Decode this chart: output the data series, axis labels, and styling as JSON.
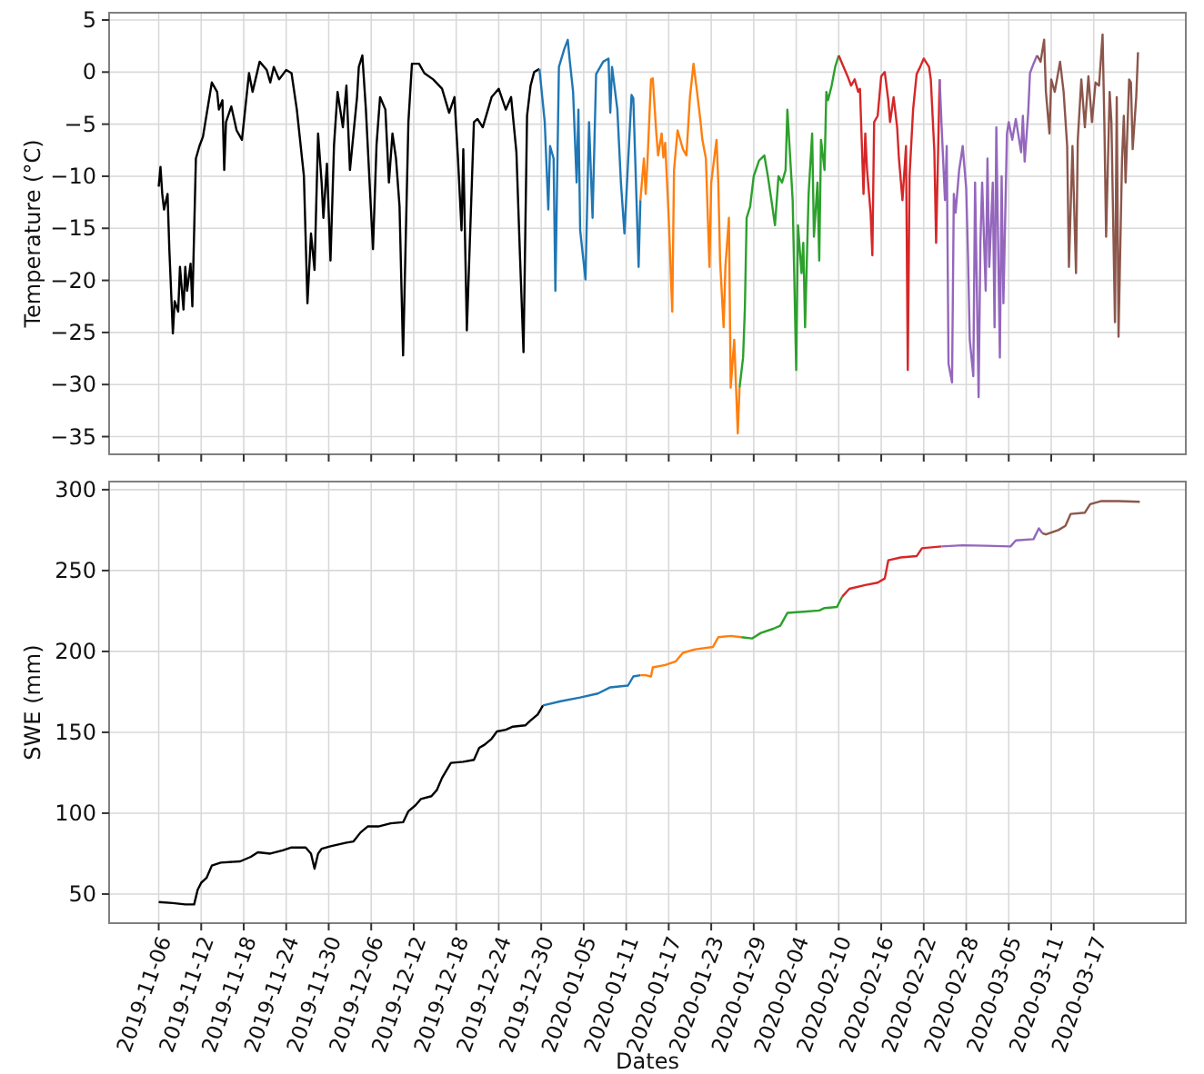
{
  "chart_data": [
    {
      "type": "line",
      "ylabel": "Temperature (°C)",
      "xlim": [
        "2019-10-30",
        "2020-03-30"
      ],
      "ylim": [
        -36.7,
        5.7
      ],
      "yticks": [
        -35,
        -30,
        -25,
        -20,
        -15,
        -10,
        -5,
        0,
        5
      ],
      "xticks": [
        "2019-11-06",
        "2019-11-12",
        "2019-11-18",
        "2019-11-24",
        "2019-11-30",
        "2019-12-06",
        "2019-12-12",
        "2019-12-18",
        "2019-12-24",
        "2019-12-30",
        "2020-01-05",
        "2020-01-11",
        "2020-01-17",
        "2020-01-23",
        "2020-01-29",
        "2020-02-04",
        "2020-02-10",
        "2020-02-16",
        "2020-02-22",
        "2020-02-28",
        "2020-03-05",
        "2020-03-11",
        "2020-03-17"
      ],
      "tick_labels": "y",
      "grid": true,
      "series": [
        {
          "color": "#000000",
          "x": [
            "2019-11-06T00:00",
            "2019-11-06T06:00",
            "2019-11-06T12:00",
            "2019-11-06T18:00",
            "2019-11-07T06:00",
            "2019-11-07T12:00",
            "2019-11-08T00:00",
            "2019-11-08T06:00",
            "2019-11-08T18:00",
            "2019-11-09T00:00",
            "2019-11-09T12:00",
            "2019-11-09T18:00",
            "2019-11-10T00:00",
            "2019-11-10T12:00",
            "2019-11-10T18:00",
            "2019-11-11T06:00",
            "2019-11-11T18:00",
            "2019-11-12T06:00",
            "2019-11-13T12:00",
            "2019-11-14T06:00",
            "2019-11-14T12:00",
            "2019-11-15T00:00",
            "2019-11-15T06:00",
            "2019-11-15T12:00",
            "2019-11-16T06:00",
            "2019-11-17T00:00",
            "2019-11-17T18:00",
            "2019-11-18T18:00",
            "2019-11-19T06:00",
            "2019-11-20T06:00",
            "2019-11-21T06:00",
            "2019-11-21T18:00",
            "2019-11-22T06:00",
            "2019-11-23T00:00",
            "2019-11-24T00:00",
            "2019-11-24T18:00",
            "2019-11-25T12:00",
            "2019-11-26T12:00",
            "2019-11-27T00:00",
            "2019-11-27T12:00",
            "2019-11-28T00:00",
            "2019-11-28T12:00",
            "2019-11-29T00:00",
            "2019-11-29T06:00",
            "2019-11-29T18:00",
            "2019-11-30T06:00",
            "2019-11-30T18:00",
            "2019-12-01T06:00",
            "2019-12-02T00:00",
            "2019-12-02T12:00",
            "2019-12-03T00:00",
            "2019-12-03T12:00",
            "2019-12-04T00:00",
            "2019-12-04T06:00",
            "2019-12-04T18:00",
            "2019-12-05T06:00",
            "2019-12-06T06:00",
            "2019-12-06T18:00",
            "2019-12-07T06:00",
            "2019-12-08T00:00",
            "2019-12-08T12:00",
            "2019-12-09T00:00",
            "2019-12-09T12:00",
            "2019-12-10T00:00",
            "2019-12-10T12:00",
            "2019-12-11T06:00",
            "2019-12-11T18:00",
            "2019-12-12T18:00",
            "2019-12-13T12:00",
            "2019-12-14T18:00",
            "2019-12-16T00:00",
            "2019-12-17T00:00",
            "2019-12-17T18:00",
            "2019-12-18T06:00",
            "2019-12-18T18:00",
            "2019-12-19T00:00",
            "2019-12-19T12:00",
            "2019-12-20T12:00",
            "2019-12-21T00:00",
            "2019-12-21T18:00",
            "2019-12-23T00:00",
            "2019-12-24T00:00",
            "2019-12-25T00:00",
            "2019-12-25T18:00",
            "2019-12-26T12:00",
            "2019-12-27T00:00",
            "2019-12-27T12:00",
            "2019-12-28T00:00",
            "2019-12-28T12:00",
            "2019-12-29T00:00",
            "2019-12-29T18:00"
          ],
          "values": [
            -11,
            -9.1,
            -11.7,
            -13.2,
            -11.7,
            -17,
            -25.1,
            -22,
            -23,
            -18.7,
            -22.8,
            -18.7,
            -21,
            -18.4,
            -22.5,
            -8.3,
            -7.1,
            -6.2,
            -1,
            -1.9,
            -3.6,
            -2.7,
            -9.4,
            -4.8,
            -3.3,
            -5.6,
            -6.5,
            -0.1,
            -1.9,
            1,
            0.2,
            -1,
            0.5,
            -0.7,
            0.2,
            -0.1,
            -3.6,
            -10,
            -22.2,
            -15.5,
            -19,
            -5.9,
            -10.6,
            -14,
            -8.8,
            -18.1,
            -7,
            -1.9,
            -5.3,
            -1.3,
            -9.4,
            -5.9,
            -2.4,
            0.5,
            1.6,
            -3.6,
            -17,
            -7,
            -2.4,
            -3.6,
            -10.6,
            -5.9,
            -8.3,
            -12.9,
            -27.2,
            -4.8,
            0.8,
            0.8,
            -0.1,
            -0.7,
            -1.6,
            -3.9,
            -2.4,
            -8.3,
            -15.2,
            -7.4,
            -24.8,
            -4.8,
            -4.5,
            -5.3,
            -2.4,
            -1.6,
            -3.6,
            -2.4,
            -7.7,
            -17.6,
            -26.9,
            -4.2,
            -1.3,
            0,
            0.3
          ]
        },
        {
          "color": "#1f77b4",
          "x": [
            "2019-12-29T18:00",
            "2019-12-30T12:00",
            "2019-12-31T00:00",
            "2019-12-31T06:00",
            "2019-12-31T18:00",
            "2020-01-01T00:00",
            "2020-01-01T12:00",
            "2020-01-02T06:00",
            "2020-01-02T18:00",
            "2020-01-03T00:00",
            "2020-01-03T12:00",
            "2020-01-04T00:00",
            "2020-01-04T06:00",
            "2020-01-04T12:00",
            "2020-01-05T06:00",
            "2020-01-05T18:00",
            "2020-01-06T06:00",
            "2020-01-06T18:00",
            "2020-01-07T18:00",
            "2020-01-08T12:00",
            "2020-01-08T18:00",
            "2020-01-09T00:00",
            "2020-01-09T18:00",
            "2020-01-10T06:00",
            "2020-01-10T18:00",
            "2020-01-11T18:00",
            "2020-01-12T00:00",
            "2020-01-12T18:00",
            "2020-01-13T00:00"
          ],
          "values": [
            0.3,
            -4.8,
            -13.2,
            -7.1,
            -8.3,
            -21,
            0.5,
            2.2,
            3.1,
            1.3,
            -1.9,
            -10.6,
            -3.6,
            -15.2,
            -19.9,
            -4.8,
            -14,
            -0.2,
            1,
            1.3,
            -3.9,
            0.5,
            -3.6,
            -10.6,
            -15.5,
            -2.2,
            -2.5,
            -18.7,
            -12.3
          ]
        },
        {
          "color": "#ff7f0e",
          "x": [
            "2020-01-13T00:00",
            "2020-01-13T12:00",
            "2020-01-13T18:00",
            "2020-01-14T00:00",
            "2020-01-14T12:00",
            "2020-01-14T18:00",
            "2020-01-15T06:00",
            "2020-01-15T12:00",
            "2020-01-16T00:00",
            "2020-01-16T06:00",
            "2020-01-16T12:00",
            "2020-01-17T00:00",
            "2020-01-17T12:00",
            "2020-01-17T18:00",
            "2020-01-18T06:00",
            "2020-01-19T00:00",
            "2020-01-19T12:00",
            "2020-01-20T00:00",
            "2020-01-20T12:00",
            "2020-01-21T00:00",
            "2020-01-21T12:00",
            "2020-01-21T18:00",
            "2020-01-22T06:00",
            "2020-01-22T18:00",
            "2020-01-23T00:00",
            "2020-01-23T18:00",
            "2020-01-24T00:00",
            "2020-01-24T06:00",
            "2020-01-24T18:00",
            "2020-01-25T00:00",
            "2020-01-25T12:00",
            "2020-01-25T18:00",
            "2020-01-26T06:00",
            "2020-01-26T18:00",
            "2020-01-27T00:00"
          ],
          "values": [
            -12.3,
            -8.3,
            -11.7,
            -8.6,
            -0.7,
            -0.6,
            -5.9,
            -8,
            -5.9,
            -8.2,
            -6.8,
            -14,
            -23,
            -9.4,
            -5.6,
            -7.4,
            -8,
            -2.4,
            0.8,
            -1.9,
            -4.8,
            -6.5,
            -8.3,
            -18.7,
            -10.6,
            -6.5,
            -10.6,
            -18.1,
            -24.5,
            -18.7,
            -14,
            -30.3,
            -25.7,
            -34.7,
            -30.3
          ]
        },
        {
          "color": "#2ca02c",
          "x": [
            "2020-01-27T00:00",
            "2020-01-27T12:00",
            "2020-01-27T18:00",
            "2020-01-28T00:00",
            "2020-01-28T12:00",
            "2020-01-29T00:00",
            "2020-01-29T18:00",
            "2020-01-30T12:00",
            "2020-01-31T00:00",
            "2020-01-31T12:00",
            "2020-02-01T00:00",
            "2020-02-01T12:00",
            "2020-02-02T00:00",
            "2020-02-02T12:00",
            "2020-02-02T18:00",
            "2020-02-03T06:00",
            "2020-02-03T12:00",
            "2020-02-04T00:00",
            "2020-02-04T06:00",
            "2020-02-04T18:00",
            "2020-02-05T00:00",
            "2020-02-05T06:00",
            "2020-02-05T18:00",
            "2020-02-06T06:00",
            "2020-02-06T12:00",
            "2020-02-07T00:00",
            "2020-02-07T06:00",
            "2020-02-07T12:00",
            "2020-02-08T00:00",
            "2020-02-08T06:00",
            "2020-02-08T12:00",
            "2020-02-09T00:00",
            "2020-02-09T12:00",
            "2020-02-10T00:00"
          ],
          "values": [
            -30.3,
            -27.4,
            -22.7,
            -14,
            -12.9,
            -10,
            -8.5,
            -8,
            -10,
            -12.3,
            -14.7,
            -10,
            -10.6,
            -9.4,
            -3.6,
            -9.4,
            -12.3,
            -28.6,
            -14.7,
            -19.3,
            -16.4,
            -24.5,
            -11.7,
            -5.9,
            -15.8,
            -10.6,
            -18.1,
            -6.5,
            -9.4,
            -1.9,
            -2.7,
            -1.3,
            0.5,
            1.6
          ]
        },
        {
          "color": "#d62728",
          "x": [
            "2020-02-10T00:00",
            "2020-02-10T12:00",
            "2020-02-11T06:00",
            "2020-02-11T18:00",
            "2020-02-12T06:00",
            "2020-02-12T18:00",
            "2020-02-13T00:00",
            "2020-02-13T12:00",
            "2020-02-13T18:00",
            "2020-02-14T00:00",
            "2020-02-14T12:00",
            "2020-02-14T18:00",
            "2020-02-15T00:00",
            "2020-02-15T12:00",
            "2020-02-16T00:00",
            "2020-02-16T12:00",
            "2020-02-17T00:00",
            "2020-02-17T06:00",
            "2020-02-17T18:00",
            "2020-02-18T06:00",
            "2020-02-18T12:00",
            "2020-02-19T00:00",
            "2020-02-19T12:00",
            "2020-02-19T18:00",
            "2020-02-20T00:00",
            "2020-02-20T12:00",
            "2020-02-21T00:00",
            "2020-02-21T12:00",
            "2020-02-22T00:00",
            "2020-02-22T18:00",
            "2020-02-23T00:00",
            "2020-02-23T12:00",
            "2020-02-23T18:00",
            "2020-02-24T06:00"
          ],
          "values": [
            1.6,
            0.8,
            -0.4,
            -1.3,
            -0.7,
            -1.9,
            -1.6,
            -11.7,
            -5.9,
            -9.4,
            -13.5,
            -17.6,
            -4.8,
            -4.2,
            -0.4,
            0,
            -2.7,
            -4.8,
            -2.4,
            -5.3,
            -8.3,
            -12.3,
            -7.1,
            -28.6,
            -10,
            -3.6,
            -0.2,
            0.5,
            1.3,
            0.5,
            -0.7,
            -7.6,
            -16.4,
            -0.7
          ]
        },
        {
          "color": "#9467bd",
          "x": [
            "2020-02-24T06:00",
            "2020-02-24T12:00",
            "2020-02-25T00:00",
            "2020-02-25T06:00",
            "2020-02-25T12:00",
            "2020-02-26T00:00",
            "2020-02-26T06:00",
            "2020-02-26T12:00",
            "2020-02-27T00:00",
            "2020-02-27T06:00",
            "2020-02-27T12:00",
            "2020-02-28T00:00",
            "2020-02-28T06:00",
            "2020-02-28T12:00",
            "2020-02-29T00:00",
            "2020-02-29T06:00",
            "2020-02-29T18:00",
            "2020-03-01T00:00",
            "2020-03-01T06:00",
            "2020-03-01T18:00",
            "2020-03-02T00:00",
            "2020-03-02T06:00",
            "2020-03-02T18:00",
            "2020-03-03T00:00",
            "2020-03-03T06:00",
            "2020-03-03T18:00",
            "2020-03-04T00:00",
            "2020-03-04T06:00",
            "2020-03-04T18:00",
            "2020-03-05T00:00",
            "2020-03-05T12:00",
            "2020-03-06T00:00",
            "2020-03-06T18:00",
            "2020-03-07T00:00",
            "2020-03-07T06:00",
            "2020-03-07T18:00",
            "2020-03-08T00:00",
            "2020-03-08T12:00",
            "2020-03-09T00:00"
          ],
          "values": [
            -0.7,
            -4.8,
            -12.3,
            -7.1,
            -28,
            -29.8,
            -11.7,
            -13.5,
            -9.4,
            -8.3,
            -7.1,
            -11.2,
            -17.6,
            -25.7,
            -29.2,
            -10.6,
            -31.2,
            -16.4,
            -10.6,
            -21,
            -8.3,
            -18.7,
            -10.6,
            -24.5,
            -5.3,
            -27.4,
            -10,
            -22.2,
            -5.9,
            -4.8,
            -6.5,
            -4.5,
            -7.7,
            -4.2,
            -8.6,
            -3.9,
            -0.1,
            0.8,
            1.6
          ]
        },
        {
          "color": "#8c564b",
          "x": [
            "2020-03-09T00:00",
            "2020-03-09T12:00",
            "2020-03-10T00:00",
            "2020-03-10T06:00",
            "2020-03-10T18:00",
            "2020-03-11T00:00",
            "2020-03-11T12:00",
            "2020-03-12T06:00",
            "2020-03-12T18:00",
            "2020-03-13T06:00",
            "2020-03-13T12:00",
            "2020-03-14T00:00",
            "2020-03-14T12:00",
            "2020-03-14T18:00",
            "2020-03-15T06:00",
            "2020-03-15T18:00",
            "2020-03-16T06:00",
            "2020-03-16T18:00",
            "2020-03-17T06:00",
            "2020-03-17T18:00",
            "2020-03-18T06:00",
            "2020-03-18T12:00",
            "2020-03-18T18:00",
            "2020-03-19T06:00",
            "2020-03-19T12:00",
            "2020-03-20T00:00",
            "2020-03-20T06:00",
            "2020-03-20T12:00",
            "2020-03-21T00:00",
            "2020-03-21T06:00",
            "2020-03-21T12:00",
            "2020-03-22T00:00",
            "2020-03-22T06:00",
            "2020-03-22T12:00",
            "2020-03-23T00:00",
            "2020-03-23T06:00"
          ],
          "values": [
            1.6,
            1,
            3.1,
            -1.9,
            -5.9,
            -0.7,
            -1.9,
            1,
            -1.9,
            -7.1,
            -18.7,
            -7.1,
            -19.3,
            -6.5,
            -0.7,
            -5.3,
            -0.4,
            -4.8,
            -1,
            -1.3,
            3.6,
            -4.8,
            -15.8,
            -1.9,
            -4.8,
            -24,
            -2.4,
            -25.4,
            -8.3,
            -4.2,
            -10.6,
            -0.7,
            -1,
            -7.4,
            -2.4,
            1.9
          ]
        }
      ]
    },
    {
      "type": "line",
      "xlabel": "Dates",
      "ylabel": "SWE (mm)",
      "xlim": [
        "2019-10-30",
        "2020-03-30"
      ],
      "ylim": [
        32,
        305
      ],
      "yticks": [
        50,
        100,
        150,
        200,
        250,
        300
      ],
      "xticks": [
        "2019-11-06",
        "2019-11-12",
        "2019-11-18",
        "2019-11-24",
        "2019-11-30",
        "2019-12-06",
        "2019-12-12",
        "2019-12-18",
        "2019-12-24",
        "2019-12-30",
        "2020-01-05",
        "2020-01-11",
        "2020-01-17",
        "2020-01-23",
        "2020-01-29",
        "2020-02-04",
        "2020-02-10",
        "2020-02-16",
        "2020-02-22",
        "2020-02-28",
        "2020-03-05",
        "2020-03-11",
        "2020-03-17"
      ],
      "grid": true,
      "series": [
        {
          "color": "#000000",
          "x": [
            "2019-11-06T00:00",
            "2019-11-08T00:00",
            "2019-11-09T18:00",
            "2019-11-11T00:00",
            "2019-11-11T12:00",
            "2019-11-12T00:00",
            "2019-11-12T18:00",
            "2019-11-13T12:00",
            "2019-11-14T18:00",
            "2019-11-17T12:00",
            "2019-11-19T00:00",
            "2019-11-20T00:00",
            "2019-11-21T18:00",
            "2019-11-23T12:00",
            "2019-11-24T18:00",
            "2019-11-26T18:00",
            "2019-11-27T12:00",
            "2019-11-28T00:00",
            "2019-11-28T12:00",
            "2019-11-29T00:00",
            "2019-11-30T06:00",
            "2019-12-02T12:00",
            "2019-12-03T12:00",
            "2019-12-04T12:00",
            "2019-12-05T12:00",
            "2019-12-07T00:00",
            "2019-12-08T18:00",
            "2019-12-10T12:00",
            "2019-12-11T06:00",
            "2019-12-12T06:00",
            "2019-12-13T00:00",
            "2019-12-14T12:00",
            "2019-12-15T06:00",
            "2019-12-16T00:00",
            "2019-12-17T06:00",
            "2019-12-19T00:00",
            "2019-12-20T12:00",
            "2019-12-21T06:00",
            "2019-12-22T00:00",
            "2019-12-23T00:00",
            "2019-12-23T18:00",
            "2019-12-25T00:00",
            "2019-12-26T00:00",
            "2019-12-27T18:00",
            "2019-12-28T12:00",
            "2019-12-29T12:00",
            "2019-12-30T06:00"
          ],
          "values": [
            45.1,
            44.4,
            43.6,
            43.6,
            52.6,
            57,
            60,
            67.6,
            69.4,
            70.2,
            73,
            75.8,
            75,
            77,
            78.8,
            78.8,
            75,
            65.7,
            75,
            78,
            79.5,
            81.8,
            82.5,
            88.1,
            91.8,
            91.8,
            93.7,
            94.4,
            101.2,
            104.9,
            108.7,
            110.5,
            114.2,
            121.8,
            131.1,
            131.8,
            133,
            140.4,
            142.3,
            146,
            150.5,
            151.6,
            153.5,
            154.3,
            157.3,
            161,
            166.6
          ]
        },
        {
          "color": "#1f77b4",
          "x": [
            "2019-12-30T06:00",
            "2020-01-01T18:00",
            "2020-01-04T12:00",
            "2020-01-07T00:00",
            "2020-01-08T18:00",
            "2020-01-11T06:00",
            "2020-01-12T00:00",
            "2020-01-13T00:00"
          ],
          "values": [
            166.6,
            169.2,
            171.5,
            174,
            177.8,
            178.9,
            184.5,
            185.3
          ]
        },
        {
          "color": "#ff7f0e",
          "x": [
            "2020-01-13T00:00",
            "2020-01-13T18:00",
            "2020-01-14T12:00",
            "2020-01-14T18:00",
            "2020-01-16T12:00",
            "2020-01-18T00:00",
            "2020-01-19T00:00",
            "2020-01-20T18:00",
            "2020-01-23T06:00",
            "2020-01-24T00:00",
            "2020-01-25T18:00",
            "2020-01-27T06:00"
          ],
          "values": [
            185.3,
            185.3,
            184.5,
            190.1,
            191.6,
            193.9,
            199.1,
            201.3,
            202.8,
            208.8,
            209.6,
            208.8
          ]
        },
        {
          "color": "#2ca02c",
          "x": [
            "2020-01-27T06:00",
            "2020-01-28T18:00",
            "2020-01-30T00:00",
            "2020-01-31T18:00",
            "2020-02-01T18:00",
            "2020-02-02T18:00",
            "2020-02-05T00:00",
            "2020-02-07T06:00",
            "2020-02-08T00:00",
            "2020-02-09T18:00",
            "2020-02-10T12:00"
          ],
          "values": [
            208.8,
            208,
            211.4,
            214,
            215.9,
            223.8,
            224.5,
            225.3,
            226.8,
            227.5,
            233.9
          ]
        },
        {
          "color": "#d62728",
          "x": [
            "2020-02-10T12:00",
            "2020-02-11T12:00",
            "2020-02-13T18:00",
            "2020-02-15T12:00",
            "2020-02-16T12:00",
            "2020-02-17T00:00",
            "2020-02-18T18:00",
            "2020-02-21T00:00",
            "2020-02-21T18:00",
            "2020-02-24T12:00"
          ],
          "values": [
            233.9,
            238.7,
            241,
            242.5,
            245.1,
            256.3,
            258.1,
            258.9,
            263.8,
            264.9
          ]
        },
        {
          "color": "#9467bd",
          "x": [
            "2020-02-24T12:00",
            "2020-02-27T12:00",
            "2020-03-01T18:00",
            "2020-03-05T06:00",
            "2020-03-06T00:00",
            "2020-03-08T12:00",
            "2020-03-09T06:00",
            "2020-03-09T18:00"
          ],
          "values": [
            264.9,
            265.6,
            265.3,
            264.9,
            268.6,
            269.4,
            276.1,
            273.1
          ]
        },
        {
          "color": "#8c564b",
          "x": [
            "2020-03-09T18:00",
            "2020-03-10T06:00",
            "2020-03-12T00:00",
            "2020-03-13T00:00",
            "2020-03-13T18:00",
            "2020-03-15T18:00",
            "2020-03-16T12:00",
            "2020-03-18T00:00",
            "2020-03-20T12:00",
            "2020-03-23T12:00"
          ],
          "values": [
            273.1,
            272.3,
            275,
            277.6,
            285,
            285.8,
            291,
            292.9,
            292.9,
            292.5
          ]
        }
      ]
    }
  ]
}
